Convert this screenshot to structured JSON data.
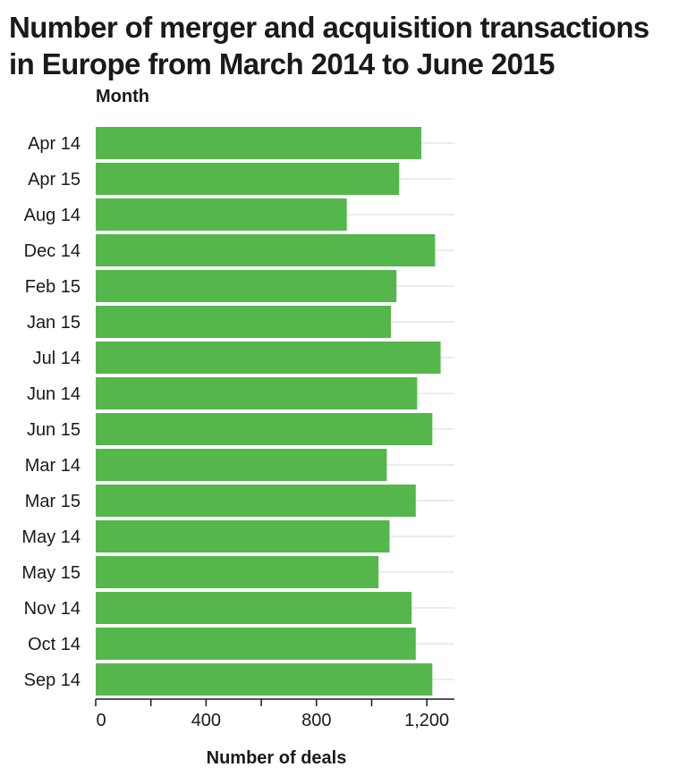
{
  "chart_data": {
    "type": "bar",
    "orientation": "horizontal",
    "title": "Number of merger and acquisition transactions in Europe from March 2014 to June 2015",
    "xlabel": "Number of deals",
    "ylabel": "Month",
    "categories": [
      "Apr 14",
      "Apr 15",
      "Aug 14",
      "Dec 14",
      "Feb 15",
      "Jan 15",
      "Jul 14",
      "Jun 14",
      "Jun 15",
      "Mar 14",
      "Mar 15",
      "May 14",
      "May 15",
      "Nov 14",
      "Oct 14",
      "Sep 14"
    ],
    "values": [
      1180,
      1100,
      910,
      1230,
      1090,
      1070,
      1250,
      1165,
      1220,
      1055,
      1160,
      1065,
      1025,
      1145,
      1160,
      1220
    ],
    "xlim": [
      0,
      1300
    ],
    "xticks": [
      0,
      400,
      800,
      1200
    ],
    "xtick_labels": [
      "0",
      "400",
      "800",
      "1,200"
    ],
    "grid": "vertical lines at minor ticks",
    "bar_color": "#55b74b",
    "grid_color": "#d9d9d9",
    "axis_color": "#1a1a1a"
  }
}
